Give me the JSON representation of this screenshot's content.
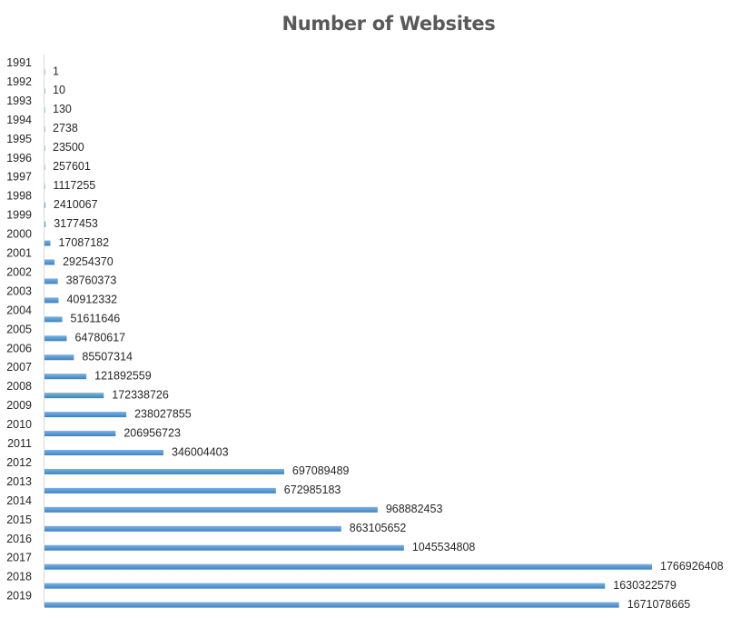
{
  "chart_data": {
    "type": "bar",
    "orientation": "horizontal",
    "title": "Number of Websites",
    "xlabel": "",
    "ylabel": "",
    "categories": [
      "1991",
      "1992",
      "1993",
      "1994",
      "1995",
      "1996",
      "1997",
      "1998",
      "1999",
      "2000",
      "2001",
      "2002",
      "2003",
      "2004",
      "2005",
      "2006",
      "2007",
      "2008",
      "2009",
      "2010",
      "2011",
      "2012",
      "2013",
      "2014",
      "2015",
      "2016",
      "2017",
      "2018",
      "2019"
    ],
    "values": [
      1,
      10,
      130,
      2738,
      23500,
      257601,
      1117255,
      2410067,
      3177453,
      17087182,
      29254370,
      38760373,
      40912332,
      51611646,
      64780617,
      85507314,
      121892559,
      172338726,
      238027855,
      206956723,
      346004403,
      697089489,
      672985183,
      968882453,
      863105652,
      1045534808,
      1766926408,
      1630322579,
      1671078665
    ],
    "data_labels": true,
    "grid": false,
    "legend": "none",
    "bar_color": "#5B9BD5"
  }
}
